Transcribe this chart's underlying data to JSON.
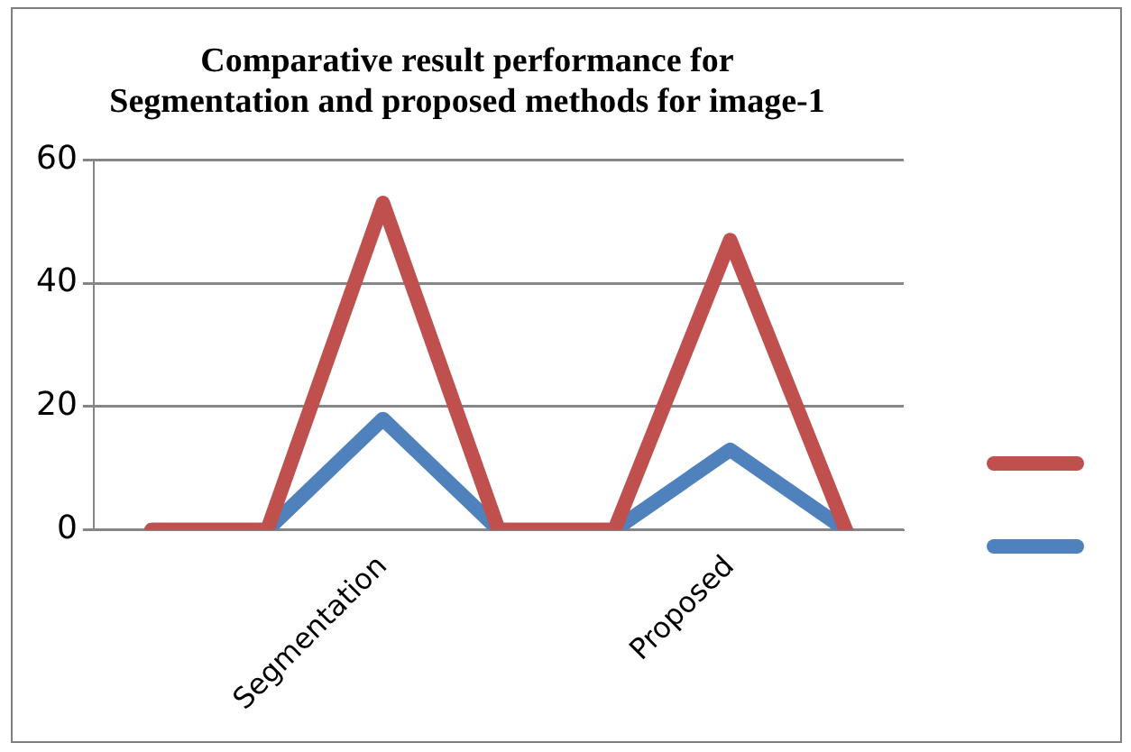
{
  "chart_data": {
    "type": "line",
    "title": "Comparative result performance for Segmentation and proposed methods for image-1",
    "categories": [
      null,
      null,
      "Segmentation",
      null,
      null,
      "Proposed",
      null
    ],
    "series": [
      {
        "color": "#c0504d",
        "values": [
          0,
          0,
          53,
          0,
          0,
          47,
          0
        ]
      },
      {
        "color": "#4f81bd",
        "values": [
          0,
          0,
          18,
          0,
          0,
          13,
          0
        ]
      }
    ],
    "ylim": [
      0,
      60
    ],
    "yticks": [
      0,
      20,
      40,
      60
    ],
    "grid": "y",
    "marker": "none"
  }
}
